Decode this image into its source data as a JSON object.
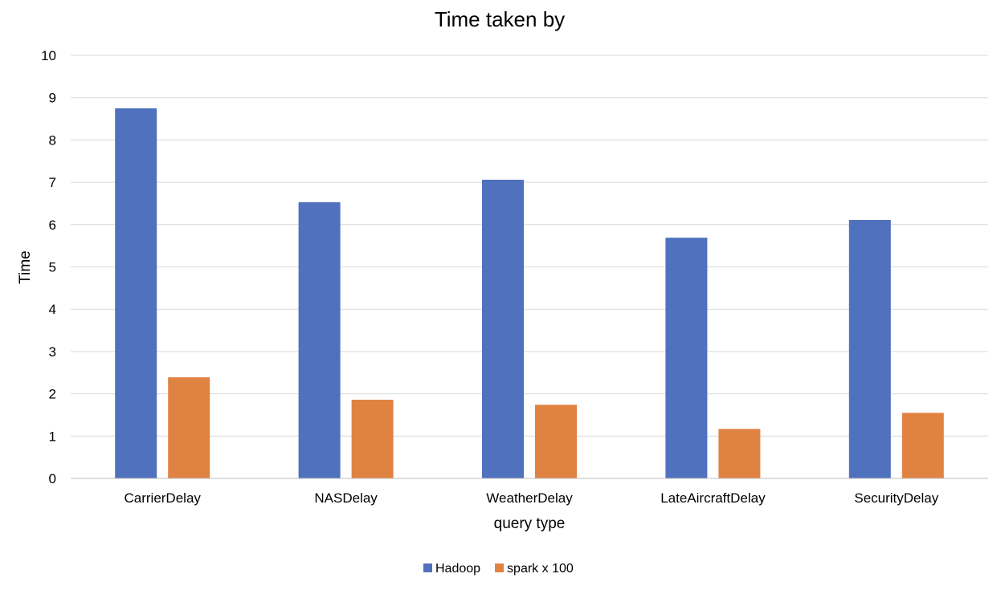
{
  "chart_data": {
    "type": "bar",
    "title": "Time taken by",
    "xlabel": "query type",
    "ylabel": "Time",
    "categories": [
      "CarrierDelay",
      "NASDelay",
      "WeatherDelay",
      "LateAircraftDelay",
      "SecurityDelay"
    ],
    "series": [
      {
        "name": "Hadoop",
        "values": [
          8.75,
          6.53,
          7.06,
          5.69,
          6.11
        ],
        "color": "#4f71be"
      },
      {
        "name": "spark x 100",
        "values": [
          2.39,
          1.86,
          1.74,
          1.17,
          1.55
        ],
        "color": "#e08342"
      }
    ],
    "ylim": [
      0,
      10
    ],
    "yticks": [
      0,
      1,
      2,
      3,
      4,
      5,
      6,
      7,
      8,
      9,
      10
    ],
    "grid": true,
    "legend_position": "bottom"
  }
}
